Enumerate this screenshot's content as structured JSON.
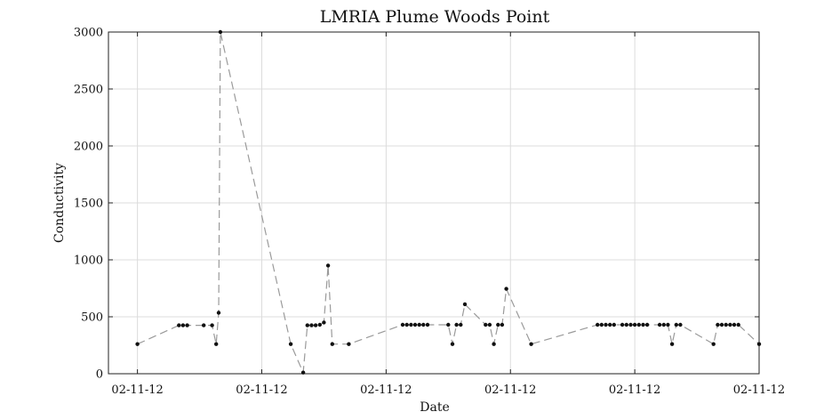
{
  "chart_data": {
    "type": "line",
    "title": "LMRIA Plume Woods Point",
    "xlabel": "Date",
    "ylabel": "Conductivity",
    "xlim": [
      0,
      157
    ],
    "ylim": [
      0,
      3000
    ],
    "x_ticks": [
      {
        "x": 7,
        "label": "02-11-12"
      },
      {
        "x": 37,
        "label": "02-11-12"
      },
      {
        "x": 67,
        "label": "02-11-12"
      },
      {
        "x": 97,
        "label": "02-11-12"
      },
      {
        "x": 127,
        "label": "02-11-12"
      },
      {
        "x": 157,
        "label": "02-11-12"
      }
    ],
    "y_ticks": [
      0,
      500,
      1000,
      1500,
      2000,
      2500,
      3000
    ],
    "grid": true,
    "series": [
      {
        "points": [
          [
            7,
            260
          ],
          [
            17,
            425
          ],
          [
            18,
            425
          ],
          [
            19,
            425
          ],
          [
            23,
            425
          ],
          [
            25,
            425
          ],
          [
            26,
            260
          ],
          [
            26.6,
            535
          ],
          [
            27,
            3000
          ],
          [
            44,
            260
          ],
          [
            47,
            10
          ],
          [
            48,
            425
          ],
          [
            49,
            425
          ],
          [
            50,
            425
          ],
          [
            51,
            430
          ],
          [
            52,
            450
          ],
          [
            53,
            950
          ],
          [
            54,
            260
          ],
          [
            58,
            260
          ],
          [
            71,
            430
          ],
          [
            72,
            430
          ],
          [
            73,
            430
          ],
          [
            74,
            430
          ],
          [
            75,
            430
          ],
          [
            76,
            430
          ],
          [
            77,
            430
          ],
          [
            82,
            430
          ],
          [
            83,
            260
          ],
          [
            84,
            430
          ],
          [
            85,
            430
          ],
          [
            86,
            610
          ],
          [
            91,
            430
          ],
          [
            92,
            430
          ],
          [
            93,
            260
          ],
          [
            94,
            430
          ],
          [
            95,
            430
          ],
          [
            96,
            745
          ],
          [
            102,
            260
          ],
          [
            118,
            430
          ],
          [
            119,
            430
          ],
          [
            120,
            430
          ],
          [
            121,
            430
          ],
          [
            122,
            430
          ],
          [
            124,
            430
          ],
          [
            125,
            430
          ],
          [
            126,
            430
          ],
          [
            127,
            430
          ],
          [
            128,
            430
          ],
          [
            129,
            430
          ],
          [
            130,
            430
          ],
          [
            133,
            430
          ],
          [
            134,
            430
          ],
          [
            135,
            430
          ],
          [
            136,
            260
          ],
          [
            137,
            430
          ],
          [
            138,
            430
          ],
          [
            146,
            260
          ],
          [
            147,
            430
          ],
          [
            148,
            430
          ],
          [
            149,
            430
          ],
          [
            150,
            430
          ],
          [
            151,
            430
          ],
          [
            152,
            430
          ],
          [
            157,
            260
          ]
        ]
      }
    ]
  }
}
